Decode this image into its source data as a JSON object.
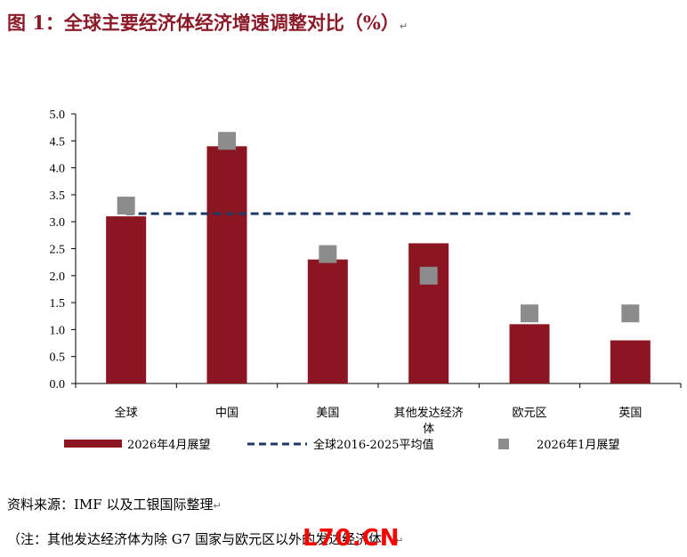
{
  "title": "图 1：全球主要经济体经济增速调整对比（%）",
  "source_note": "资料来源：IMF 以及工银国际整理",
  "footnote": "（注：其他发达经济体为除 G7 国家与欧元区以外的发达经济体）",
  "watermark": "L70.CN",
  "colors": {
    "bar": "#8b1521",
    "marker": "#8c8c8c",
    "avg_line": "#1f3864",
    "title": "#8b1a28"
  },
  "chart_data": {
    "type": "bar",
    "categories": [
      "全球",
      "中国",
      "美国",
      "其他发达经济体",
      "欧元区",
      "英国"
    ],
    "series": [
      {
        "name": "2026年4月展望",
        "kind": "bar",
        "values": [
          3.1,
          4.4,
          2.3,
          2.6,
          1.1,
          0.8
        ]
      },
      {
        "name": "全球2016-2025平均值",
        "kind": "dashed-line",
        "values": [
          3.15,
          3.15,
          3.15,
          3.15,
          3.15,
          3.15
        ]
      },
      {
        "name": "2026年1月展望",
        "kind": "marker",
        "values": [
          3.3,
          4.5,
          2.4,
          2.0,
          1.3,
          1.3
        ]
      }
    ],
    "yticks": [
      "0.0",
      "0.5",
      "1.0",
      "1.5",
      "2.0",
      "2.5",
      "3.0",
      "3.5",
      "4.0",
      "4.5",
      "5.0"
    ],
    "ylim": [
      0,
      5
    ],
    "legend_position": "bottom",
    "grid": false
  }
}
